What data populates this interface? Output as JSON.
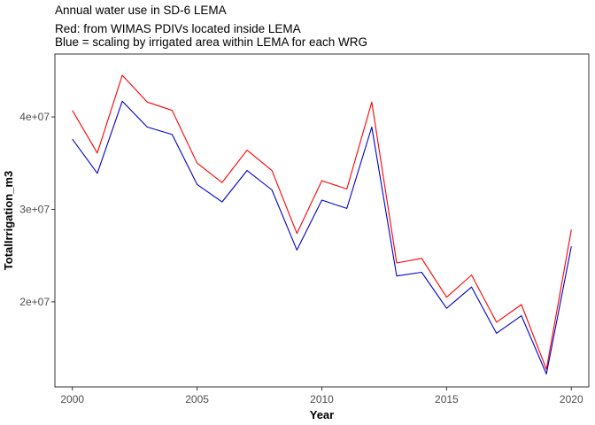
{
  "chart_data": {
    "type": "line",
    "title": "Annual water use in SD-6 LEMA",
    "subtitle_lines": [
      "Red: from WIMAS PDIVs located inside LEMA",
      "Blue = scaling by irrigated area within LEMA for each WRG"
    ],
    "xlabel": "Year",
    "ylabel": "TotalIrrigation_m3",
    "xlim": [
      1999.3,
      2020.7
    ],
    "ylim": [
      10800000,
      46800000
    ],
    "x_ticks": [
      2000,
      2005,
      2010,
      2015,
      2020
    ],
    "x_tick_labels": [
      "2000",
      "2005",
      "2010",
      "2015",
      "2020"
    ],
    "y_ticks": [
      20000000,
      30000000,
      40000000
    ],
    "y_tick_labels": [
      "2e+07",
      "3e+07",
      "4e+07"
    ],
    "grid": false,
    "legend": "none",
    "x": [
      2000,
      2001,
      2002,
      2003,
      2004,
      2005,
      2006,
      2007,
      2008,
      2009,
      2010,
      2011,
      2012,
      2013,
      2014,
      2015,
      2016,
      2017,
      2018,
      2019,
      2020
    ],
    "series": [
      {
        "color": "#ff0000",
        "values": [
          40700000,
          36100000,
          44500000,
          41600000,
          40700000,
          35000000,
          32900000,
          36400000,
          34200000,
          27400000,
          33100000,
          32200000,
          41600000,
          24200000,
          24700000,
          20500000,
          22900000,
          17800000,
          19700000,
          12700000,
          27800000
        ]
      },
      {
        "color": "#0000cc",
        "values": [
          37600000,
          33900000,
          41700000,
          38900000,
          38100000,
          32700000,
          30800000,
          34200000,
          32100000,
          25600000,
          31000000,
          30100000,
          38900000,
          22800000,
          23200000,
          19300000,
          21600000,
          16600000,
          18500000,
          12200000,
          26000000
        ]
      }
    ]
  }
}
